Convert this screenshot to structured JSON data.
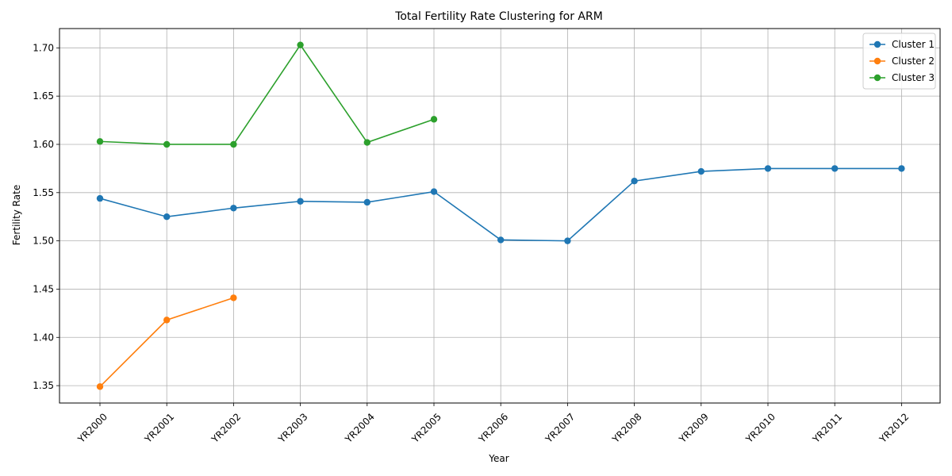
{
  "chart_data": {
    "type": "line",
    "title": "Total Fertility Rate Clustering for ARM",
    "xlabel": "Year",
    "ylabel": "Fertility Rate",
    "categories": [
      "YR2000",
      "YR2001",
      "YR2002",
      "YR2003",
      "YR2004",
      "YR2005",
      "YR2006",
      "YR2007",
      "YR2008",
      "YR2009",
      "YR2010",
      "YR2011",
      "YR2012"
    ],
    "ylim": [
      1.332,
      1.72
    ],
    "yticks": [
      "1.35",
      "1.40",
      "1.45",
      "1.50",
      "1.55",
      "1.60",
      "1.65",
      "1.70"
    ],
    "grid": true,
    "legend_position": "top-right",
    "series": [
      {
        "name": "Cluster 1",
        "color": "#1f77b4",
        "values": [
          1.544,
          1.525,
          1.534,
          1.541,
          1.54,
          1.551,
          1.501,
          1.5,
          1.562,
          1.572,
          1.575,
          1.575,
          1.575
        ]
      },
      {
        "name": "Cluster 2",
        "color": "#ff7f0e",
        "values": [
          1.349,
          1.418,
          1.441,
          null,
          null,
          null,
          null,
          null,
          null,
          null,
          null,
          null,
          null
        ]
      },
      {
        "name": "Cluster 3",
        "color": "#2ca02c",
        "values": [
          1.603,
          1.6,
          1.6,
          1.703,
          1.602,
          1.626,
          null,
          null,
          null,
          null,
          null,
          null,
          null
        ]
      }
    ]
  }
}
